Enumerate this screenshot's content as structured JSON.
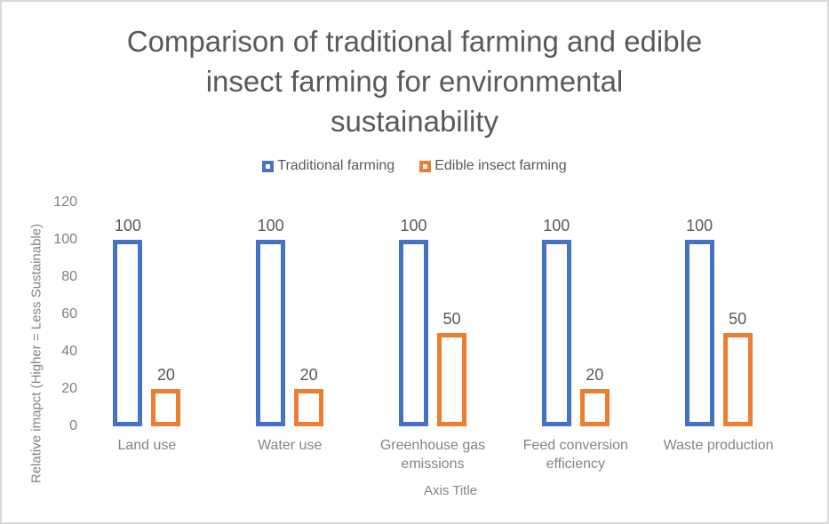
{
  "window": {
    "background": "#ffffff",
    "border_color": "#d9d9d9"
  },
  "chart_data": {
    "type": "bar",
    "bar_style": "outline",
    "title": "Comparison of traditional farming and edible insect farming for environmental sustainability",
    "title_lines": [
      "Comparison of traditional farming and edible",
      "insect farming for environmental",
      "sustainability"
    ],
    "categories": [
      "Land use",
      "Water use",
      "Greenhouse gas emissions",
      "Feed conversion efficiency",
      "Waste production"
    ],
    "series": [
      {
        "name": "Traditional farming",
        "color": "#4472C4",
        "values": [
          100,
          100,
          100,
          100,
          100
        ]
      },
      {
        "name": "Edible insect farming",
        "color": "#ED7D31",
        "values": [
          20,
          20,
          50,
          20,
          50
        ]
      }
    ],
    "xlabel": "Axis Title",
    "ylabel": "Relative imapct (Higher = Less Sustainable)",
    "yticks": [
      0,
      20,
      40,
      60,
      80,
      100,
      120
    ],
    "ylim": [
      0,
      120
    ],
    "grid": false,
    "axis_lines": false,
    "legend_position": "top",
    "data_labels": true,
    "text_colors": {
      "title": "#595959",
      "data_label": "#595959",
      "axis_text": "#848484",
      "tick_label": "#808080"
    }
  }
}
